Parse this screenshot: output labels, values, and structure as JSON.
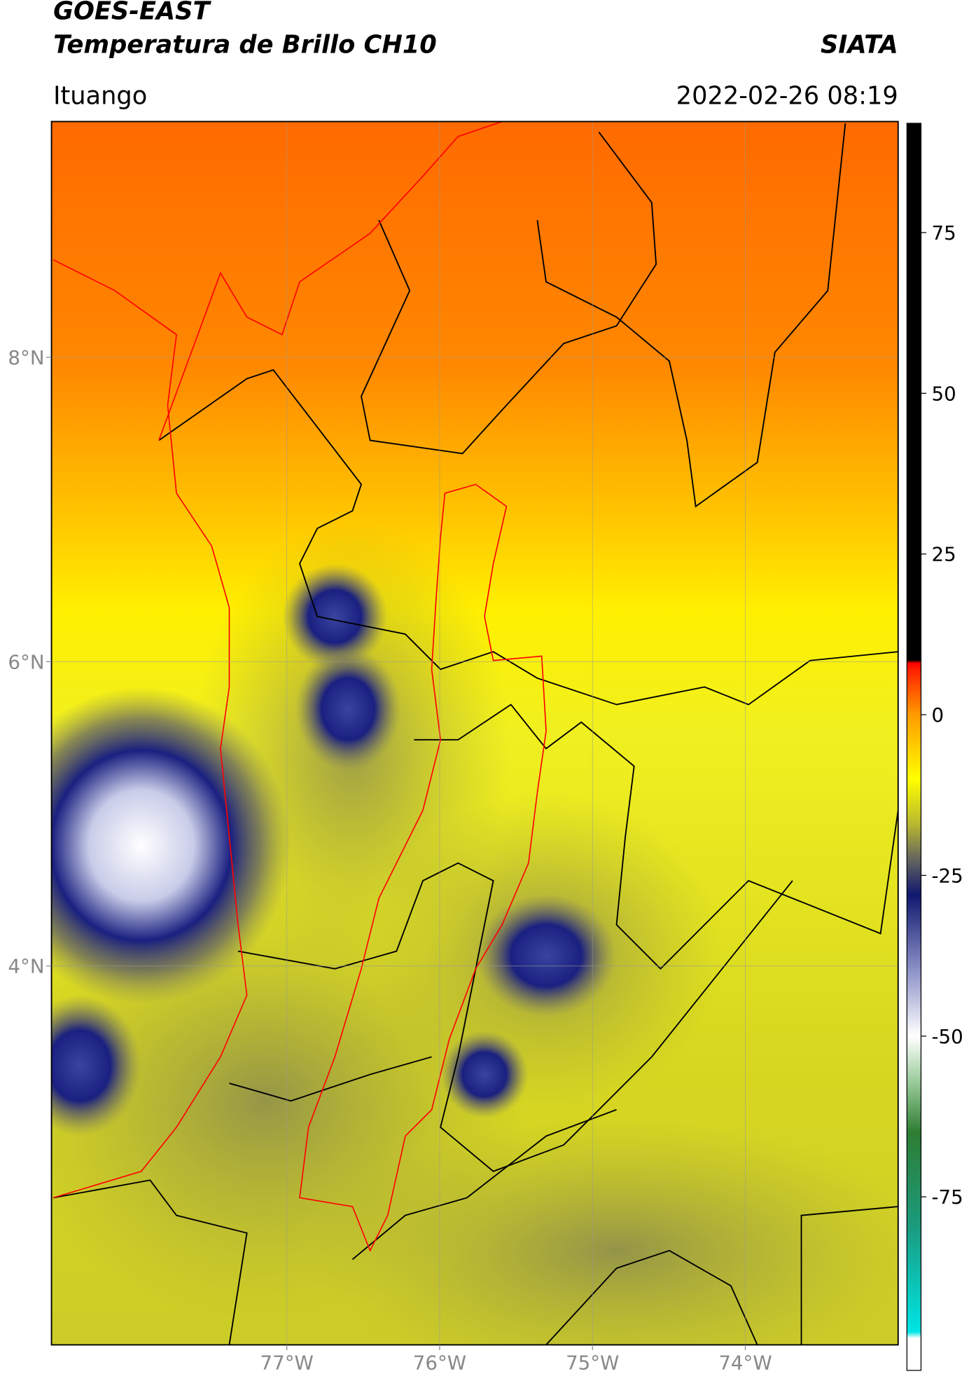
{
  "header": {
    "title": "GOES-EAST",
    "subtitle": "Temperatura de Brillo CH10",
    "source": "SIATA",
    "location": "Ituango",
    "datetime": "2022-02-26 08:19"
  },
  "map": {
    "xlim": [
      -78.54,
      -73.0
    ],
    "ylim": [
      1.51,
      9.55
    ],
    "xticks": [
      {
        "value": -77,
        "label": "77°W"
      },
      {
        "value": -76,
        "label": "76°W"
      },
      {
        "value": -75,
        "label": "75°W"
      },
      {
        "value": -74,
        "label": "74°W"
      }
    ],
    "yticks": [
      {
        "value": 8,
        "label": "8°N"
      },
      {
        "value": 6,
        "label": "6°N"
      },
      {
        "value": 4,
        "label": "4°N"
      }
    ],
    "grid": true
  },
  "colorbar": {
    "lim": [
      -102,
      92
    ],
    "ticks": [
      -75,
      -50,
      -25,
      0,
      25,
      50,
      75
    ],
    "stops": [
      {
        "value": -102,
        "color": "#ffffff"
      },
      {
        "value": -97,
        "color": "#ffffff"
      },
      {
        "value": -96,
        "color": "#00e5e5"
      },
      {
        "value": -80,
        "color": "#1a9c80"
      },
      {
        "value": -65,
        "color": "#2e7d32"
      },
      {
        "value": -57,
        "color": "#9ccc9c"
      },
      {
        "value": -50,
        "color": "#ffffff"
      },
      {
        "value": -40,
        "color": "#8f94c8"
      },
      {
        "value": -28,
        "color": "#10186e"
      },
      {
        "value": -22,
        "color": "#6c6c5c"
      },
      {
        "value": -17,
        "color": "#b8b830"
      },
      {
        "value": -10,
        "color": "#ffff00"
      },
      {
        "value": 0,
        "color": "#ff9a00"
      },
      {
        "value": 7,
        "color": "#ff2000"
      },
      {
        "value": 8,
        "color": "#ff0000"
      },
      {
        "value": 8.5,
        "color": "#000000"
      },
      {
        "value": 92,
        "color": "#000000"
      }
    ]
  }
}
